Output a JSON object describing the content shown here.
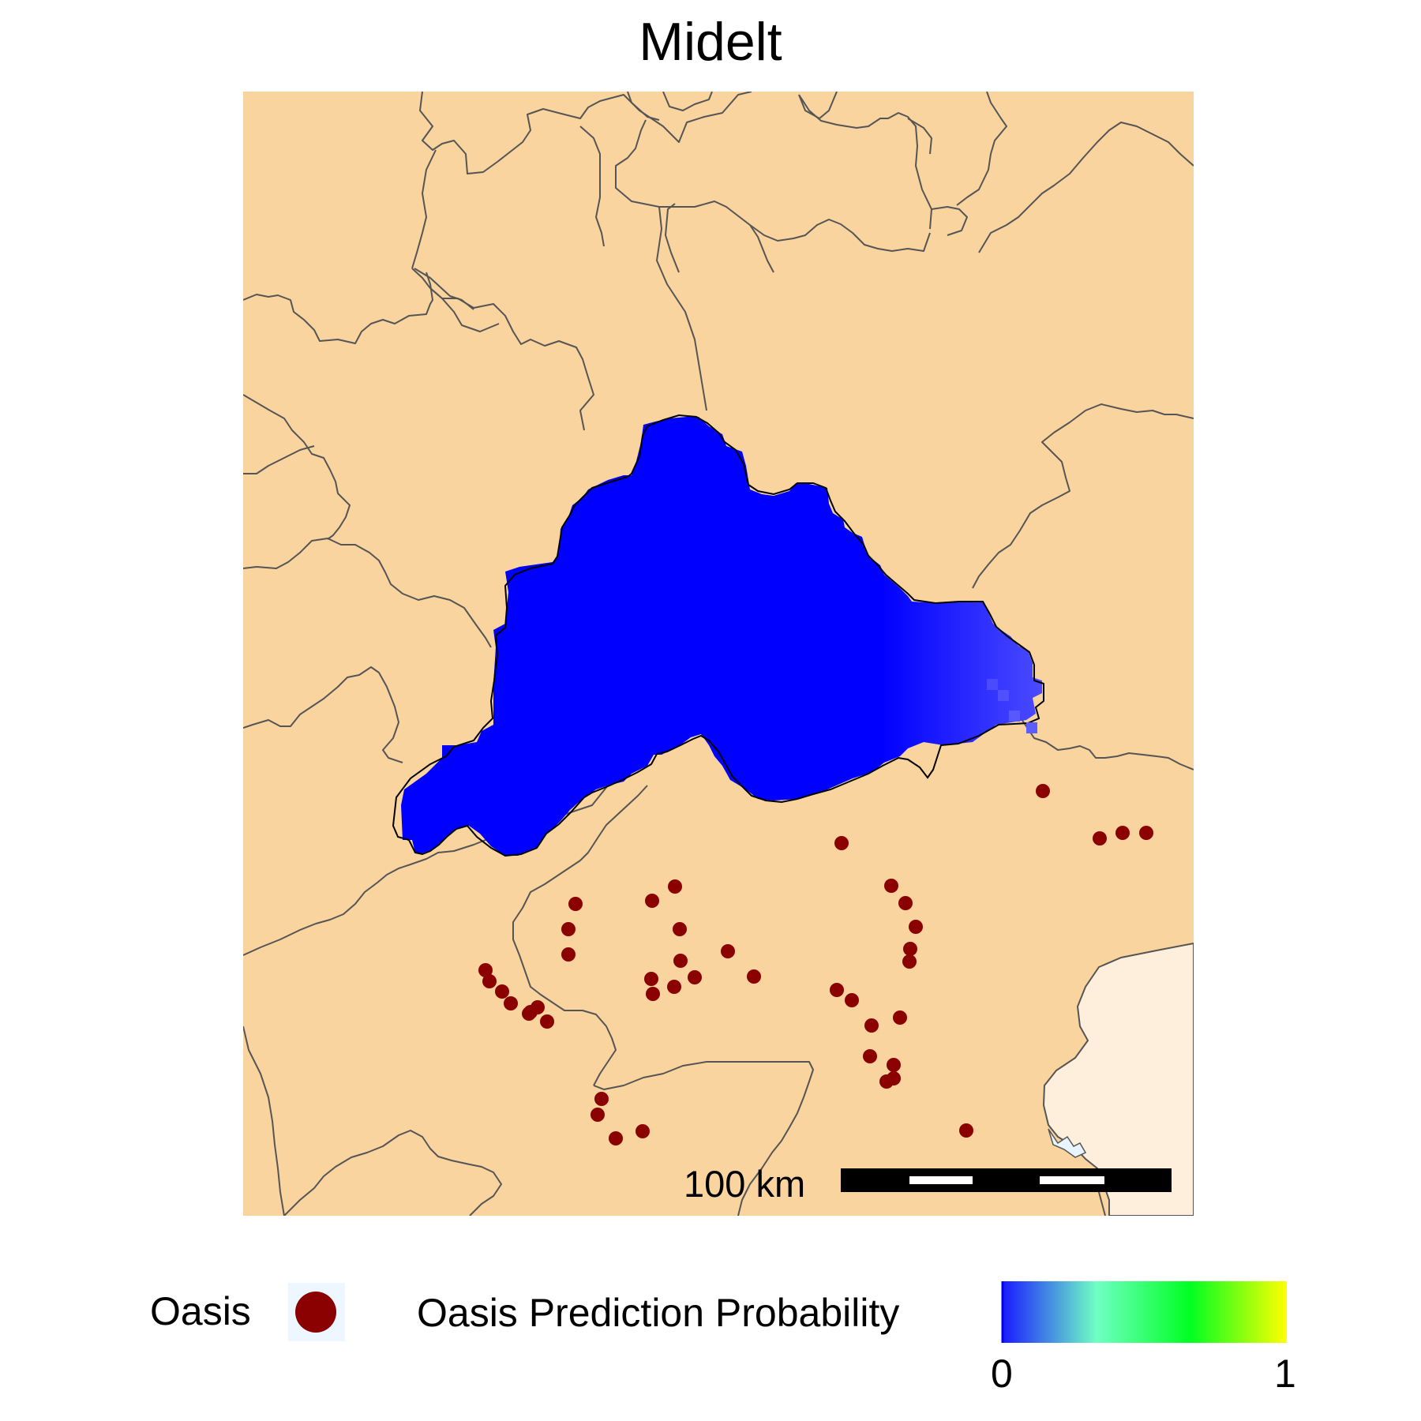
{
  "title": "Midelt",
  "scale_bar": {
    "label": "100 km"
  },
  "legend": {
    "oasis_label": "Oasis",
    "probability_label": "Oasis Prediction Probability",
    "min_label": "0",
    "max_label": "1",
    "gradient_stops": [
      "#1a1aff",
      "#6fffc4",
      "#00ff22",
      "#ffff00"
    ]
  },
  "colors": {
    "land": "#fad49f",
    "outside": "#fdefdb",
    "boundary": "#555555",
    "prediction": "#0000ff",
    "prediction_high": "#3b3bff",
    "oasis_point": "#8b0000",
    "sea_pixels": "#e8f4ff"
  },
  "oases": [
    [
      1321,
      1002
    ],
    [
      1393,
      1062
    ],
    [
      1422,
      1055
    ],
    [
      1452,
      1055
    ],
    [
      1066,
      1068
    ],
    [
      855,
      1123
    ],
    [
      729,
      1145
    ],
    [
      826,
      1141
    ],
    [
      1129,
      1122
    ],
    [
      1147,
      1144
    ],
    [
      720,
      1177
    ],
    [
      861,
      1177
    ],
    [
      1160,
      1174
    ],
    [
      720,
      1209
    ],
    [
      1153,
      1202
    ],
    [
      922,
      1205
    ],
    [
      862,
      1217
    ],
    [
      1152,
      1218
    ],
    [
      615,
      1229
    ],
    [
      620,
      1243
    ],
    [
      825,
      1240
    ],
    [
      880,
      1238
    ],
    [
      955,
      1237
    ],
    [
      1060,
      1254
    ],
    [
      1079,
      1267
    ],
    [
      636,
      1256
    ],
    [
      647,
      1271
    ],
    [
      827,
      1259
    ],
    [
      854,
      1250
    ],
    [
      672,
      1282
    ],
    [
      681,
      1276
    ],
    [
      693,
      1294
    ],
    [
      1104,
      1299
    ],
    [
      670,
      1284
    ],
    [
      1140,
      1289
    ],
    [
      1102,
      1338
    ],
    [
      1132,
      1349
    ],
    [
      1123,
      1370
    ],
    [
      1132,
      1366
    ],
    [
      762,
      1392
    ],
    [
      757,
      1412
    ],
    [
      780,
      1442
    ],
    [
      814,
      1433
    ],
    [
      1224,
      1432
    ]
  ]
}
